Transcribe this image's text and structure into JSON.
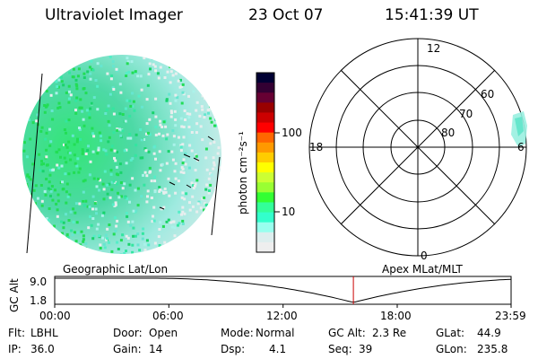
{
  "header": {
    "instrument": "Ultraviolet Imager",
    "date": "23 Oct 07",
    "time": "15:41:39 UT"
  },
  "colorbar": {
    "unit_label": "photon cm⁻²s⁻¹",
    "ticks": [
      "100",
      "10"
    ],
    "colors": [
      "#000033",
      "#330033",
      "#660033",
      "#990000",
      "#cc0000",
      "#ff0000",
      "#ff6600",
      "#ff9900",
      "#ffcc00",
      "#ffff00",
      "#ccff33",
      "#99ff33",
      "#33ff33",
      "#33ff99",
      "#33ffcc",
      "#99ffee",
      "#ddeeee",
      "#eeeeee"
    ]
  },
  "polar_plot": {
    "lat_labels": [
      "80",
      "70",
      "60"
    ],
    "mlt_labels": {
      "top": "12",
      "left": "18",
      "right": "6",
      "bottom": "0"
    }
  },
  "alt_plot": {
    "left_label": "Geographic Lat/Lon",
    "right_label": "Apex MLat/MLT",
    "y_label": "GC Alt",
    "y_ticks": [
      "9.0",
      "1.8"
    ],
    "x_ticks": [
      "00:00",
      "06:00",
      "12:00",
      "18:00",
      "23:59"
    ],
    "marker_time": "15:41:39",
    "marker_color": "#cc0000"
  },
  "footer": {
    "row1": [
      {
        "label": "Flt:",
        "value": "LBHL"
      },
      {
        "label": "Door:",
        "value": "Open"
      },
      {
        "label": "Mode:",
        "value": "Normal"
      },
      {
        "label": "GC Alt:",
        "value": "2.3 Re"
      },
      {
        "label": "GLat:",
        "value": "44.9"
      }
    ],
    "row2": [
      {
        "label": "IP:",
        "value": "36.0"
      },
      {
        "label": "Gain:",
        "value": "14"
      },
      {
        "label": "Dsp:",
        "value": "4.1"
      },
      {
        "label": "Seq:",
        "value": "39"
      },
      {
        "label": "GLon:",
        "value": "235.8"
      }
    ]
  }
}
